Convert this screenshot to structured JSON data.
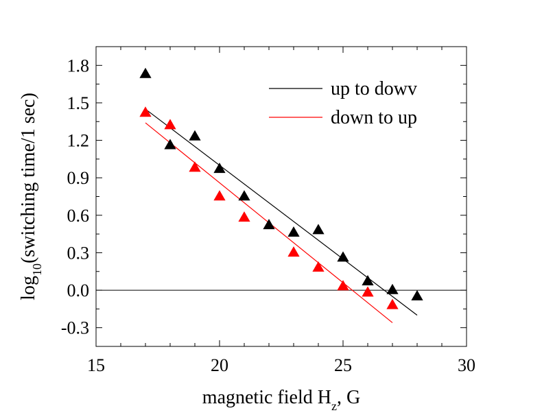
{
  "chart_data": {
    "type": "scatter",
    "xlabel": {
      "main": "magnetic field H",
      "sub": "z",
      "rest": ", G"
    },
    "ylabel": {
      "pre": "log",
      "sub": "10",
      "rest": "(switching time/1 sec)"
    },
    "xlim": [
      15,
      30
    ],
    "ylim": [
      -0.45,
      1.95
    ],
    "xticks": [
      "15",
      "20",
      "25",
      "30"
    ],
    "yticks": [
      "-0.3",
      "0.0",
      "0.3",
      "0.6",
      "0.9",
      "1.2",
      "1.5",
      "1.8"
    ],
    "reference_line_y": 0.0,
    "legend_position": "top-right",
    "series": [
      {
        "name": "up to dowv",
        "color": "#000000",
        "marker": "triangle",
        "points": [
          [
            17,
            1.73
          ],
          [
            18,
            1.16
          ],
          [
            19,
            1.23
          ],
          [
            20,
            0.97
          ],
          [
            21,
            0.75
          ],
          [
            22,
            0.52
          ],
          [
            23,
            0.46
          ],
          [
            24,
            0.48
          ],
          [
            25,
            0.26
          ],
          [
            26,
            0.07
          ],
          [
            27,
            0.0
          ],
          [
            28,
            -0.05
          ]
        ],
        "fit": [
          [
            17,
            1.45
          ],
          [
            28,
            -0.2
          ]
        ]
      },
      {
        "name": "down to up",
        "color": "#ff0000",
        "marker": "triangle",
        "points": [
          [
            17,
            1.42
          ],
          [
            18,
            1.32
          ],
          [
            19,
            0.98
          ],
          [
            20,
            0.75
          ],
          [
            21,
            0.58
          ],
          [
            23,
            0.3
          ],
          [
            24,
            0.18
          ],
          [
            25,
            0.03
          ],
          [
            26,
            -0.02
          ],
          [
            27,
            -0.12
          ]
        ],
        "fit": [
          [
            17,
            1.34
          ],
          [
            27,
            -0.26
          ]
        ]
      }
    ]
  }
}
